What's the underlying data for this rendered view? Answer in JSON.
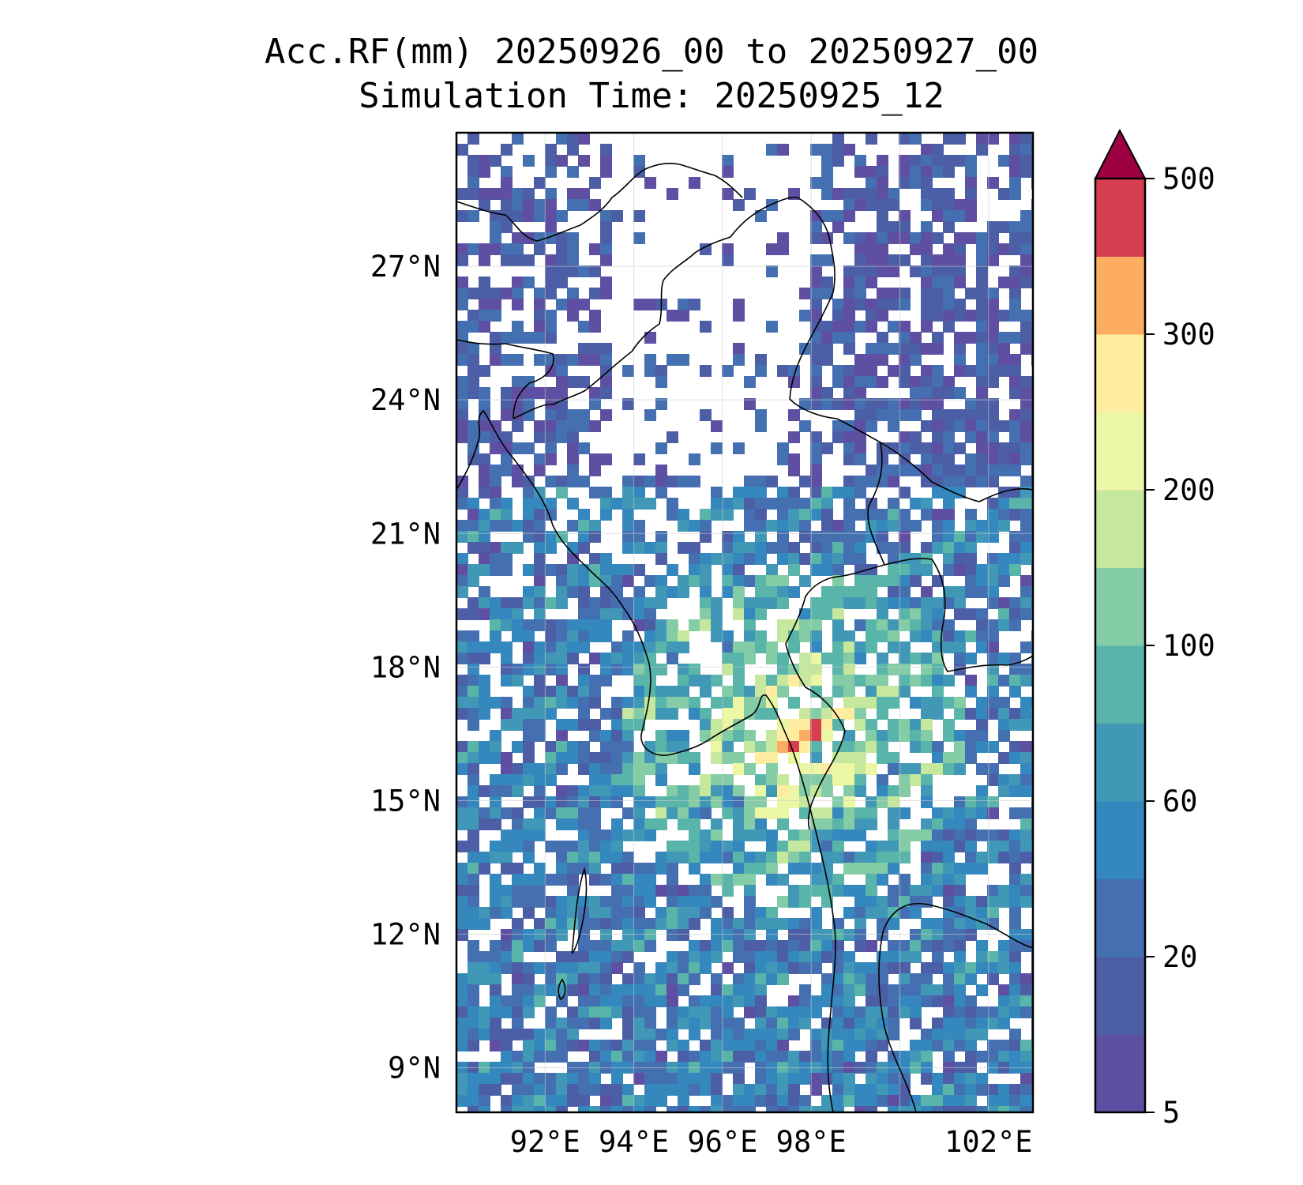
{
  "title": {
    "line1": "Acc.RF(mm) 20250926_00 to 20250927_00",
    "line2": "Simulation Time: 20250925_12"
  },
  "map": {
    "region": "Myanmar and Bay of Bengal / Andaman Sea",
    "lon_range": [
      90.0,
      103.0
    ],
    "lat_range": [
      8.0,
      30.0
    ],
    "grid": true,
    "lat_ticks": [
      {
        "value": 27,
        "label": "27°N"
      },
      {
        "value": 24,
        "label": "24°N"
      },
      {
        "value": 21,
        "label": "21°N"
      },
      {
        "value": 18,
        "label": "18°N"
      },
      {
        "value": 15,
        "label": "15°N"
      },
      {
        "value": 12,
        "label": "12°N"
      },
      {
        "value": 9,
        "label": "9°N"
      }
    ],
    "lon_ticks": [
      {
        "value": 92,
        "label": "92°E"
      },
      {
        "value": 94,
        "label": "94°E"
      },
      {
        "value": 96,
        "label": "96°E"
      },
      {
        "value": 98,
        "label": "98°E"
      },
      {
        "value": 102,
        "label": "102°E"
      }
    ],
    "rain_max_location": {
      "lon": 97.5,
      "lat": 16.6
    }
  },
  "colorbar": {
    "extend": "max",
    "levels": [
      5,
      10,
      20,
      40,
      60,
      80,
      100,
      150,
      200,
      250,
      300,
      400,
      500
    ],
    "colors": [
      "#5e4fa2",
      "#4c5fa6",
      "#4470b1",
      "#3488bd",
      "#4198b6",
      "#59b4aa",
      "#83cca5",
      "#c5e89e",
      "#ecf7a5",
      "#feeda1",
      "#fdad60",
      "#d53e4f",
      "#9e0142"
    ],
    "tick_labels": [
      "5",
      "20",
      "60",
      "100",
      "200",
      "300",
      "500"
    ],
    "tick_values": [
      5,
      20,
      60,
      100,
      200,
      300,
      500
    ]
  }
}
